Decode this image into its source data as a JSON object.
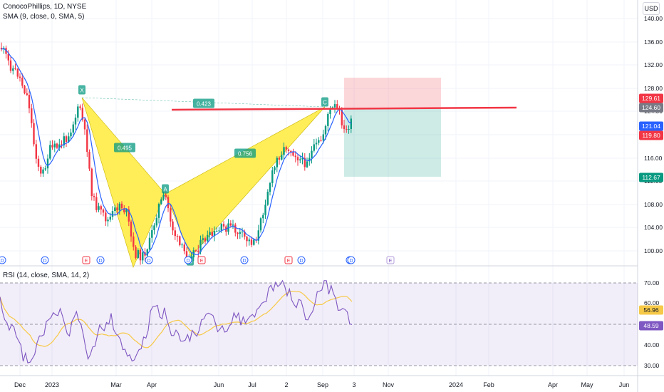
{
  "legend": {
    "symbol_line": "ConocoPhillips, 1D, NYSE",
    "sma_line": "SMA (9, close, 0, SMA, 5)",
    "rsi_line": "RSI (14, close, SMA, 14, 2)"
  },
  "currency_button": "USD",
  "price_axis": {
    "ticks": [
      "140.00",
      "136.00",
      "132.00",
      "128.00",
      "124.00",
      "120.00",
      "116.00",
      "112.00",
      "108.00",
      "104.00",
      "100.00"
    ],
    "markers": [
      {
        "value": "129.61",
        "color": "#f23645"
      },
      {
        "value": "124.60",
        "color": "#787b86"
      },
      {
        "value": "121.04",
        "color": "#2962ff"
      },
      {
        "value": "119.80",
        "color": "#f23645"
      },
      {
        "value": "112.67",
        "color": "#089981"
      }
    ]
  },
  "rsi_axis": {
    "ticks": [
      "70.00",
      "60.00",
      "40.00",
      "30.00"
    ],
    "markers": [
      {
        "value": "56.96",
        "color": "#f7c948"
      },
      {
        "value": "48.59",
        "color": "#7e57c2"
      }
    ]
  },
  "time_axis": [
    "Dec",
    "2023",
    "Mar",
    "Apr",
    "Jun",
    "Jul",
    "2",
    "Sep",
    "3",
    "Nov",
    "2024",
    "Feb",
    "Apr",
    "May",
    "Jun"
  ],
  "pattern_labels": {
    "points": [
      "X",
      "A",
      "B",
      "C",
      "D"
    ],
    "ratios": [
      "0.495",
      "0.423",
      "0.756"
    ]
  },
  "events": [
    "D",
    "D",
    "E",
    "D",
    "D",
    "D",
    "E",
    "D",
    "E",
    "D",
    "D",
    "D",
    "E"
  ],
  "colors": {
    "up": "#089981",
    "down": "#f23645",
    "sma": "#2962ff",
    "harmonic_fill": "#ffeb3b",
    "rsi_line": "#7e57c2",
    "rsi_ma": "#f7c948",
    "resistance": "#f23645"
  }
}
